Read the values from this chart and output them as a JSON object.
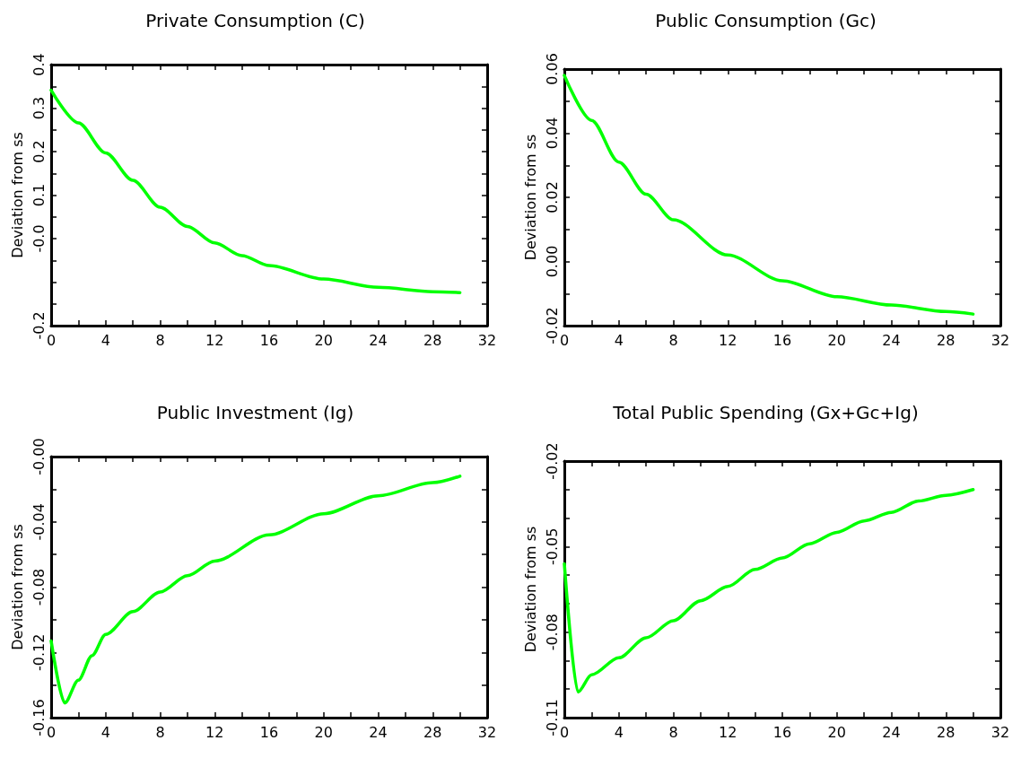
{
  "chart_data": [
    {
      "type": "line",
      "title": "Private Consumption (C)",
      "ylabel": "Deviation from ss",
      "grid": false,
      "x": [
        0,
        2,
        4,
        6,
        8,
        10,
        12,
        14,
        16,
        20,
        24,
        28,
        30
      ],
      "series": [
        {
          "color": "#00ff00",
          "values": [
            0.341,
            0.266,
            0.197,
            0.134,
            0.072,
            0.028,
            -0.01,
            -0.039,
            -0.062,
            -0.093,
            -0.112,
            -0.122,
            -0.124
          ]
        }
      ],
      "xlim": [
        0,
        32
      ],
      "xticks": [
        0,
        {
          "value": 2,
          "label": null
        },
        4,
        {
          "value": 6,
          "label": null
        },
        8,
        {
          "value": 10,
          "label": null
        },
        12,
        {
          "value": 14,
          "label": null
        },
        16,
        {
          "value": 18,
          "label": null
        },
        20,
        {
          "value": 22,
          "label": null
        },
        24,
        {
          "value": 26,
          "label": null
        },
        28,
        {
          "value": 30,
          "label": null
        },
        32
      ],
      "ylim": [
        -0.2,
        0.4
      ],
      "yticks": [
        -0.2,
        {
          "value": -0.15,
          "label": null
        },
        {
          "value": -0.1,
          "label": null
        },
        {
          "value": -0.05,
          "label": null
        },
        {
          "value": 0,
          "label": "-0.0"
        },
        {
          "value": 0.05,
          "label": null
        },
        0.1,
        {
          "value": 0.15,
          "label": null
        },
        0.2,
        {
          "value": 0.25,
          "label": null
        },
        0.3,
        {
          "value": 0.35,
          "label": null
        },
        0.4
      ]
    },
    {
      "type": "line",
      "title": "Public Consumption (Gc)",
      "ylabel": "Deviation from ss",
      "grid": false,
      "x": [
        0,
        2,
        4,
        6,
        8,
        12,
        16,
        20,
        24,
        28,
        30
      ],
      "series": [
        {
          "color": "#00ff00",
          "values": [
            0.058,
            0.044,
            0.031,
            0.021,
            0.013,
            0.002,
            -0.006,
            -0.011,
            -0.0136,
            -0.0156,
            -0.0164
          ]
        }
      ],
      "xlim": [
        0,
        32
      ],
      "xticks": [
        0,
        {
          "value": 2,
          "label": null
        },
        4,
        {
          "value": 6,
          "label": null
        },
        8,
        {
          "value": 10,
          "label": null
        },
        12,
        {
          "value": 14,
          "label": null
        },
        16,
        {
          "value": 18,
          "label": null
        },
        20,
        {
          "value": 22,
          "label": null
        },
        24,
        {
          "value": 26,
          "label": null
        },
        28,
        {
          "value": 30,
          "label": null
        },
        32
      ],
      "ylim": [
        -0.02,
        0.06
      ],
      "yticks": [
        -0.02,
        {
          "value": -0.01,
          "label": null
        },
        {
          "value": 0,
          "label": "0.00"
        },
        {
          "value": 0.01,
          "label": null
        },
        0.02,
        {
          "value": 0.03,
          "label": null
        },
        0.04,
        {
          "value": 0.05,
          "label": null
        },
        0.06
      ]
    },
    {
      "type": "line",
      "title": "Public Investment (Ig)",
      "ylabel": "Deviation from ss",
      "grid": false,
      "x": [
        0,
        1,
        2,
        3,
        4,
        6,
        8,
        10,
        12,
        16,
        20,
        24,
        28,
        30
      ],
      "series": [
        {
          "color": "#00ff00",
          "values": [
            -0.113,
            -0.151,
            -0.137,
            -0.122,
            -0.109,
            -0.095,
            -0.083,
            -0.073,
            -0.064,
            -0.048,
            -0.035,
            -0.024,
            -0.016,
            -0.012
          ]
        }
      ],
      "xlim": [
        0,
        32
      ],
      "xticks": [
        0,
        {
          "value": 2,
          "label": null
        },
        4,
        {
          "value": 6,
          "label": null
        },
        8,
        {
          "value": 10,
          "label": null
        },
        12,
        {
          "value": 14,
          "label": null
        },
        16,
        {
          "value": 18,
          "label": null
        },
        20,
        {
          "value": 22,
          "label": null
        },
        24,
        {
          "value": 26,
          "label": null
        },
        28,
        {
          "value": 30,
          "label": null
        },
        32
      ],
      "ylim": [
        -0.16,
        0
      ],
      "yticks": [
        -0.16,
        {
          "value": -0.14,
          "label": null
        },
        -0.12,
        {
          "value": -0.1,
          "label": null
        },
        -0.08,
        {
          "value": -0.06,
          "label": null
        },
        -0.04,
        {
          "value": -0.02,
          "label": null
        },
        {
          "value": 0,
          "label": "-0.00"
        }
      ]
    },
    {
      "type": "line",
      "title": "Total Public Spending (Gx+Gc+Ig)",
      "ylabel": "Deviation from ss",
      "grid": false,
      "x": [
        0,
        1,
        2,
        4,
        6,
        8,
        10,
        12,
        14,
        16,
        18,
        20,
        22,
        24,
        26,
        28,
        30
      ],
      "series": [
        {
          "color": "#00ff00",
          "values": [
            -0.056,
            -0.101,
            -0.095,
            -0.089,
            -0.082,
            -0.076,
            -0.069,
            -0.064,
            -0.058,
            -0.054,
            -0.049,
            -0.045,
            -0.041,
            -0.038,
            -0.034,
            -0.032,
            -0.03
          ]
        }
      ],
      "xlim": [
        0,
        32
      ],
      "xticks": [
        0,
        {
          "value": 2,
          "label": null
        },
        4,
        {
          "value": 6,
          "label": null
        },
        8,
        {
          "value": 10,
          "label": null
        },
        12,
        {
          "value": 14,
          "label": null
        },
        16,
        {
          "value": 18,
          "label": null
        },
        20,
        {
          "value": 22,
          "label": null
        },
        24,
        {
          "value": 26,
          "label": null
        },
        28,
        {
          "value": 30,
          "label": null
        },
        32
      ],
      "ylim": [
        -0.11,
        -0.02
      ],
      "yticks": [
        -0.11,
        {
          "value": -0.1,
          "label": null
        },
        {
          "value": -0.09,
          "label": null
        },
        -0.08,
        {
          "value": -0.07,
          "label": null
        },
        {
          "value": -0.06,
          "label": null
        },
        -0.05,
        {
          "value": -0.04,
          "label": null
        },
        {
          "value": -0.03,
          "label": null
        },
        -0.02
      ]
    }
  ]
}
